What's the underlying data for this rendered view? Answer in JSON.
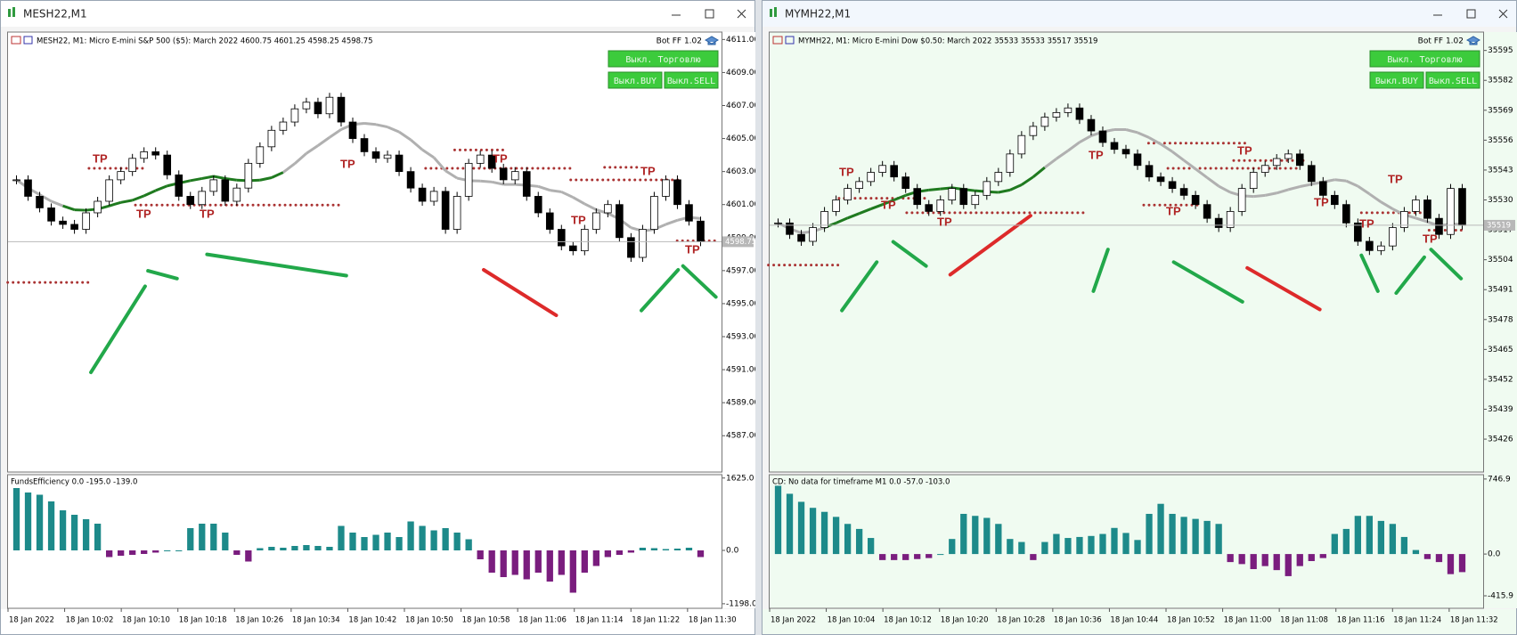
{
  "windows": [
    {
      "title": "MESH22,M1",
      "chart": {
        "header": "MESH22, M1:  Micro E-mini S&P 500 ($5): March 2022  4600.75 4601.25 4598.25 4598.75",
        "bot": "Bot FF 1.02",
        "buttons": [
          "Выкл. Торговлю",
          "Выкл.BUY",
          "Выкл.SELL"
        ],
        "annotations": [
          "TP",
          "TP",
          "TP",
          "TP",
          "TP",
          "TP",
          "TP",
          "TP"
        ],
        "ylim": [
          4584.8,
          4611.45
        ],
        "yticks": [
          {
            "value": 4611,
            "label": "4611.00"
          },
          {
            "value": 4609,
            "label": "4609.00"
          },
          {
            "value": 4607,
            "label": "4607.00"
          },
          {
            "value": 4605,
            "label": "4605.00"
          },
          {
            "value": 4603,
            "label": "4603.00"
          },
          {
            "value": 4601,
            "label": "4601.00"
          },
          {
            "value": 4599,
            "label": "4599.00"
          },
          {
            "value": 4597,
            "label": "4597.00"
          },
          {
            "value": 4595,
            "label": "4595.00"
          },
          {
            "value": 4593,
            "label": "4593.00"
          },
          {
            "value": 4591,
            "label": "4591.00"
          },
          {
            "value": 4589,
            "label": "4589.00"
          },
          {
            "value": 4587,
            "label": "4587.00"
          }
        ],
        "last_price": 4598.75,
        "closes": [
          4602.5,
          4601.5,
          4600.8,
          4600.0,
          4599.8,
          4599.5,
          4600.5,
          4601.2,
          4602.5,
          4603.0,
          4603.8,
          4604.2,
          4604.0,
          4602.8,
          4601.5,
          4601.0,
          4601.8,
          4602.5,
          4601.2,
          4602.0,
          4603.5,
          4604.5,
          4605.5,
          4606.0,
          4606.8,
          4607.2,
          4606.5,
          4607.5,
          4606.0,
          4605.0,
          4604.2,
          4603.8,
          4604.0,
          4603.0,
          4602.0,
          4601.2,
          4601.8,
          4599.5,
          4601.5,
          4603.5,
          4604.0,
          4603.2,
          4602.5,
          4603.0,
          4601.5,
          4600.5,
          4599.5,
          4598.5,
          4598.2,
          4599.5,
          4600.5,
          4601.0,
          4599.0,
          4597.8,
          4599.5,
          4601.5,
          4602.5,
          4601.0,
          4600.0,
          4598.75
        ],
        "times": [
          "18 Jan 2022",
          "18 Jan 10:02",
          "18 Jan 10:10",
          "18 Jan 10:18",
          "18 Jan 10:26",
          "18 Jan 10:34",
          "18 Jan 10:42",
          "18 Jan 10:50",
          "18 Jan 10:58",
          "18 Jan 11:06",
          "18 Jan 11:14",
          "18 Jan 11:22",
          "18 Jan 11:30"
        ]
      },
      "indicator": {
        "label": "FundsEfficiency 0.0 -195.0 -139.0",
        "ylim": [
          -1300,
          1700
        ],
        "yticks": [
          {
            "value": 1625,
            "label": "1625.0"
          },
          {
            "value": 0,
            "label": "0.0"
          },
          {
            "value": -1198,
            "label": "-1198.0"
          }
        ],
        "values": [
          1400,
          1300,
          1250,
          1100,
          900,
          800,
          700,
          600,
          -150,
          -120,
          -100,
          -80,
          -50,
          0,
          0,
          500,
          600,
          600,
          400,
          -100,
          -250,
          50,
          80,
          60,
          100,
          120,
          100,
          80,
          550,
          400,
          300,
          350,
          400,
          300,
          650,
          550,
          450,
          500,
          400,
          250,
          -200,
          -500,
          -600,
          -550,
          -650,
          -500,
          -700,
          -550,
          -950,
          -500,
          -350,
          -150,
          -100,
          -50,
          60,
          50,
          30,
          40,
          60,
          -150
        ]
      }
    },
    {
      "title": "MYMH22,M1",
      "chart": {
        "header": "MYMH22, M1:  Micro E-mini Dow $0.50: March 2022  35533 35533 35517 35519",
        "bot": "Bot FF 1.02",
        "buttons": [
          "Выкл. Торговлю",
          "Выкл.BUY",
          "Выкл.SELL"
        ],
        "annotations": [
          "TP",
          "TP",
          "TP",
          "TP",
          "TP",
          "TP",
          "TP",
          "TP",
          "TP",
          "TP"
        ],
        "ylim": [
          35411.7,
          35603
        ],
        "yticks": [
          35595,
          35582,
          35569,
          35556,
          35543,
          35530,
          35517,
          35504,
          35491,
          35478,
          35465,
          35452,
          35439,
          35426
        ],
        "last_price": 35519,
        "closes": [
          35520,
          35515,
          35512,
          35518,
          35525,
          35530,
          35535,
          35538,
          35542,
          35545,
          35540,
          35535,
          35528,
          35525,
          35530,
          35535,
          35528,
          35532,
          35538,
          35542,
          35550,
          35558,
          35562,
          35566,
          35568,
          35570,
          35565,
          35560,
          35555,
          35552,
          35550,
          35545,
          35540,
          35538,
          35535,
          35532,
          35528,
          35522,
          35518,
          35525,
          35535,
          35542,
          35545,
          35548,
          35550,
          35545,
          35538,
          35532,
          35528,
          35520,
          35512,
          35508,
          35510,
          35518,
          35525,
          35530,
          35522,
          35515,
          35535,
          35519
        ],
        "times": [
          "18 Jan 2022",
          "18 Jan 10:04",
          "18 Jan 10:12",
          "18 Jan 10:20",
          "18 Jan 10:28",
          "18 Jan 10:36",
          "18 Jan 10:44",
          "18 Jan 10:52",
          "18 Jan 11:00",
          "18 Jan 11:08",
          "18 Jan 11:16",
          "18 Jan 11:24",
          "18 Jan 11:32"
        ]
      },
      "indicator": {
        "label": "CD: No data for timeframe M1 0.0 -57.0 -103.0",
        "ylim": [
          -540,
          790
        ],
        "yticks": [
          {
            "value": 746.9,
            "label": "746.9"
          },
          {
            "value": 0,
            "label": "0.0"
          },
          {
            "value": -415.9,
            "label": "-415.9"
          }
        ],
        "values": [
          680,
          600,
          520,
          460,
          420,
          370,
          300,
          250,
          160,
          -60,
          -60,
          -60,
          -50,
          -40,
          0,
          150,
          400,
          380,
          360,
          300,
          150,
          120,
          -60,
          120,
          200,
          160,
          170,
          180,
          200,
          260,
          210,
          140,
          400,
          500,
          400,
          370,
          350,
          330,
          300,
          -80,
          -100,
          -150,
          -120,
          -160,
          -220,
          -120,
          -70,
          -40,
          200,
          250,
          380,
          380,
          330,
          300,
          170,
          40,
          -50,
          -80,
          -200,
          -180
        ]
      }
    }
  ]
}
